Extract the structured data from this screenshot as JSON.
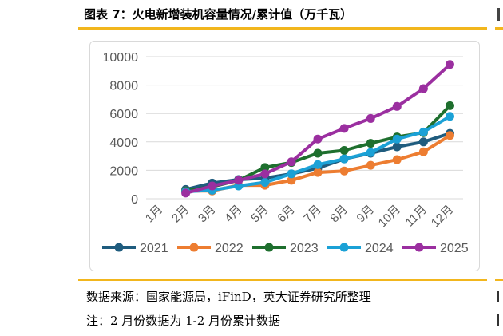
{
  "figure": {
    "title": "图表 7：火电新增装机容量情况/累计值（万千瓦）",
    "source": "数据来源：国家能源局，iFinD，英大证券研究所整理",
    "note": "注：2 月份数据为 1-2 月份累计数据"
  },
  "colors": {
    "accent_rule": "#f2b61d",
    "gridline": "#d9d9d9",
    "axis_text": "#595959"
  },
  "chart_data": {
    "type": "line",
    "title": "",
    "xlabel": "",
    "ylabel": "",
    "categories": [
      "1月",
      "2月",
      "3月",
      "4月",
      "5月",
      "6月",
      "7月",
      "8月",
      "9月",
      "10月",
      "11月",
      "12月"
    ],
    "ylim": [
      0,
      10000
    ],
    "yticks": [
      0,
      2000,
      4000,
      6000,
      8000,
      10000
    ],
    "ytick_labels": [
      "0",
      "2000",
      "4000",
      "6000",
      "8000",
      "10000"
    ],
    "grid": true,
    "legend_position": "bottom",
    "series": [
      {
        "name": "2021",
        "color": "#1f5c7e",
        "values": [
          null,
          650,
          1100,
          1350,
          1450,
          1750,
          2150,
          2800,
          3200,
          3650,
          4000,
          4600
        ]
      },
      {
        "name": "2022",
        "color": "#ed7d31",
        "values": [
          null,
          550,
          550,
          950,
          950,
          1300,
          1850,
          1950,
          2350,
          2750,
          3300,
          4450
        ]
      },
      {
        "name": "2023",
        "color": "#1e6f2e",
        "values": [
          null,
          550,
          850,
          1300,
          2200,
          2550,
          3200,
          3400,
          3900,
          4350,
          4650,
          6550
        ]
      },
      {
        "name": "2024",
        "color": "#1ba1d6",
        "values": [
          null,
          500,
          600,
          900,
          1150,
          1750,
          2400,
          2800,
          3250,
          4200,
          4700,
          5800
        ]
      },
      {
        "name": "2025",
        "color": "#9b2fa0",
        "values": [
          null,
          400,
          900,
          1300,
          1750,
          2600,
          4200,
          4950,
          5650,
          6500,
          7750,
          9450
        ]
      }
    ]
  }
}
